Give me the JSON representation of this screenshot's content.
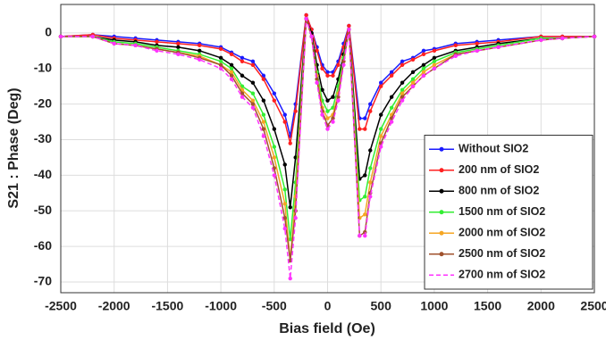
{
  "chart_data": {
    "type": "line",
    "x_label": "Bias field (Oe)",
    "y_label": "S21 : Phase (Deg)",
    "x": [
      -2500,
      -2200,
      -2000,
      -1800,
      -1600,
      -1400,
      -1200,
      -1000,
      -900,
      -800,
      -700,
      -600,
      -500,
      -400,
      -350,
      -300,
      -200,
      -150,
      -100,
      -50,
      0,
      50,
      100,
      150,
      200,
      300,
      350,
      400,
      500,
      600,
      700,
      800,
      900,
      1000,
      1200,
      1400,
      1600,
      2000,
      2200,
      2500
    ],
    "series": [
      {
        "name": "Without SIO2",
        "color": "#1a1aff",
        "linestyle": "solid",
        "values": [
          -1,
          -0.5,
          -1,
          -1.5,
          -2,
          -2.5,
          -3,
          -4,
          -5.5,
          -7,
          -8,
          -12,
          -17,
          -23,
          -29,
          -20,
          5,
          1,
          -4,
          -9,
          -11,
          -11,
          -8,
          -3,
          2,
          -24,
          -24,
          -20,
          -14,
          -11,
          -8,
          -7,
          -5,
          -4.5,
          -3,
          -2.5,
          -2,
          -1,
          -1,
          -1
        ]
      },
      {
        "name": "200 nm of SIO2",
        "color": "#ff2020",
        "linestyle": "solid",
        "values": [
          -1,
          -0.5,
          -1.5,
          -2,
          -2.5,
          -3,
          -3.5,
          -4.5,
          -6,
          -8,
          -9,
          -13,
          -19,
          -25,
          -31,
          -22,
          5,
          1,
          -5,
          -10,
          -12,
          -12,
          -9,
          -4,
          2,
          -27,
          -27,
          -22,
          -15,
          -12,
          -9,
          -7.5,
          -6,
          -5,
          -3.5,
          -3,
          -2.5,
          -1,
          -1,
          -1
        ]
      },
      {
        "name": "800 nm of SIO2",
        "color": "#000000",
        "linestyle": "solid",
        "values": [
          -1,
          -1,
          -2,
          -2.5,
          -3.5,
          -4,
          -5,
          -7,
          -9,
          -12,
          -14,
          -19,
          -27,
          -37,
          -49,
          -35,
          4,
          0,
          -9,
          -16,
          -19,
          -18,
          -13,
          -6,
          1,
          -41,
          -40,
          -33,
          -23,
          -18,
          -14,
          -11,
          -9,
          -7,
          -5,
          -4,
          -3,
          -1.5,
          -1.5,
          -1
        ]
      },
      {
        "name": "1500 nm of SIO2",
        "color": "#33ee33",
        "linestyle": "solid",
        "values": [
          -1,
          -1,
          -2.5,
          -3,
          -4,
          -5,
          -6,
          -8,
          -10,
          -15,
          -17,
          -23,
          -32,
          -44,
          -58,
          -42,
          4,
          -1,
          -11,
          -19,
          -22,
          -21,
          -15,
          -7,
          1,
          -47,
          -46,
          -38,
          -27,
          -21,
          -16,
          -13,
          -10,
          -8,
          -5.5,
          -4.5,
          -3.5,
          -1.5,
          -1.5,
          -1
        ]
      },
      {
        "name": "2000 nm of SIO2",
        "color": "#f5a623",
        "linestyle": "solid",
        "values": [
          -1,
          -1,
          -3,
          -3.5,
          -4.5,
          -5.5,
          -6.5,
          -9,
          -11,
          -16,
          -19,
          -25,
          -35,
          -48,
          -64,
          -46,
          4,
          -1,
          -12,
          -21,
          -24,
          -23,
          -17,
          -8,
          1,
          -52,
          -51,
          -42,
          -29,
          -23,
          -17,
          -14,
          -11,
          -9,
          -6,
          -5,
          -4,
          -2,
          -1.5,
          -1
        ]
      },
      {
        "name": "2500 nm of SIO2",
        "color": "#a0522d",
        "linestyle": "solid",
        "values": [
          -1,
          -1,
          -3,
          -3.5,
          -4.5,
          -5.5,
          -7,
          -9,
          -12,
          -17,
          -20,
          -27,
          -38,
          -52,
          -64,
          -50,
          4,
          -1,
          -13,
          -22,
          -26,
          -24,
          -18,
          -8,
          1,
          -57,
          -56,
          -45,
          -31,
          -24,
          -18,
          -15,
          -12,
          -10,
          -6,
          -5,
          -4,
          -2,
          -1.5,
          -1
        ]
      },
      {
        "name": "2700 nm of SIO2",
        "color": "#ff33ff",
        "linestyle": "dashed",
        "values": [
          -1,
          -1,
          -3,
          -3.5,
          -5,
          -6,
          -7.5,
          -10,
          -13,
          -18,
          -21,
          -29,
          -40,
          -55,
          -69,
          -52,
          4,
          -1,
          -14,
          -23,
          -27,
          -25,
          -19,
          -9,
          1,
          -57,
          -57,
          -46,
          -32,
          -25,
          -19,
          -15,
          -12,
          -10,
          -6.5,
          -5,
          -4,
          -2,
          -1.5,
          -1
        ]
      }
    ],
    "xlim": [
      -2500,
      2500
    ],
    "xticks": [
      -2500,
      -2000,
      -1500,
      -1000,
      -500,
      0,
      500,
      1000,
      1500,
      2000,
      2500
    ],
    "ylim": [
      -73,
      8
    ],
    "yticks": [
      -70,
      -60,
      -50,
      -40,
      -30,
      -20,
      -10,
      0
    ],
    "grid": true,
    "legend": "lower right"
  }
}
